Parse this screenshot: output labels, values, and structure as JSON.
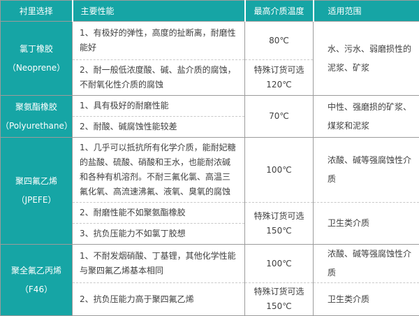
{
  "theme": {
    "accent_teal": "#16a5a5",
    "header_text": "#ffffff",
    "body_text": "#404040",
    "border_solid": "#9b9b9b",
    "border_dashed": "#c9c9c9"
  },
  "table": {
    "headers": [
      "衬里选择",
      "主要性能",
      "最高介质温度",
      "适用范围"
    ],
    "groups": [
      {
        "material": "氯丁橡胶",
        "material_en": "（Neoprene）",
        "rows": [
          {
            "performance": "1、有极好的弹性，高度的扯断离，耐磨性能好",
            "temp": "80℃"
          },
          {
            "performance": "2、耐一般低浓度酸、碱、盐介质的腐蚀，不耐氧化性介质的腐蚀",
            "temp_note": "特殊订货可选",
            "temp": "120℃"
          }
        ],
        "range": "水、污水、弱磨损性的泥浆、矿浆"
      },
      {
        "material": "聚氨酯橡胶",
        "material_en": "（Polyurethane）",
        "rows": [
          {
            "performance": "1、具有极好的耐磨性能"
          },
          {
            "performance": "2、耐酸、碱腐蚀性能较差"
          }
        ],
        "temp": "70℃",
        "range": "中性、强磨损的矿浆、煤浆和泥浆"
      },
      {
        "material": "聚四氟乙烯",
        "material_en": "（JPEFE）",
        "rows": [
          {
            "performance": "1、几乎可以抵抗所有化学介质，能耐妃糖的盐酸、硫酸、硝酸和王水，也能耐浓碱和各种有机溶剂。不耐三氟化氯、高温三氟化氧、高流速沸氟、液氧、臭氧的腐蚀",
            "temp": "100℃",
            "range": "浓酸、碱等强腐蚀性介质"
          },
          {
            "performance": "2、耐磨性能不如聚氨酯橡胶",
            "temp_note": "特殊订货可选",
            "temp": "150℃",
            "range": "卫生类介质"
          },
          {
            "performance": "3、抗负压能力不如氯丁胶想"
          }
        ]
      },
      {
        "material": "聚全氟乙丙烯",
        "material_en": "（F46）",
        "rows": [
          {
            "performance": "1、不耐发烟硝酸、丁基锂，其他化学性能与聚四氟乙烯基本相同",
            "temp": "100℃",
            "range": "浓酸、碱等强腐蚀性介质"
          },
          {
            "performance": "2、抗负压能力高于聚四氟乙烯",
            "temp_note": "特殊订货可选",
            "temp": "150℃",
            "range": "卫生类介质"
          }
        ]
      }
    ]
  }
}
